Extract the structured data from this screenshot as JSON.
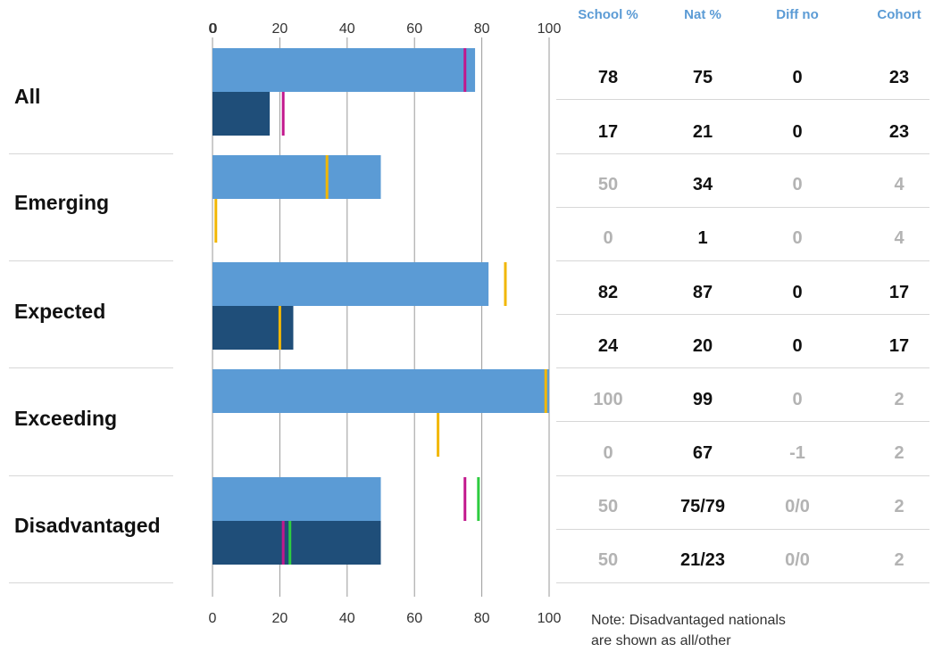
{
  "chart_data": {
    "type": "bar",
    "orientation": "horizontal",
    "xlim": [
      0,
      100
    ],
    "x_ticks": [
      "0",
      "20",
      "40",
      "60",
      "80",
      "100"
    ],
    "categories": [
      "All",
      "Emerging",
      "Expected",
      "Exceeding",
      "Disadvantaged"
    ],
    "bars": [
      {
        "category": "All",
        "shade": "light",
        "value": 78,
        "markers": [
          {
            "value": 75,
            "color": "#c2188d"
          }
        ]
      },
      {
        "category": "All",
        "shade": "dark",
        "value": 17,
        "markers": [
          {
            "value": 21,
            "color": "#c2188d"
          }
        ]
      },
      {
        "category": "Emerging",
        "shade": "light",
        "value": 50,
        "markers": [
          {
            "value": 34,
            "color": "#f2b705"
          }
        ]
      },
      {
        "category": "Emerging",
        "shade": "dark",
        "value": 0,
        "markers": [
          {
            "value": 1,
            "color": "#f2b705"
          }
        ]
      },
      {
        "category": "Expected",
        "shade": "light",
        "value": 82,
        "markers": [
          {
            "value": 87,
            "color": "#f2b705"
          }
        ]
      },
      {
        "category": "Expected",
        "shade": "dark",
        "value": 24,
        "markers": [
          {
            "value": 20,
            "color": "#f2b705"
          }
        ]
      },
      {
        "category": "Exceeding",
        "shade": "light",
        "value": 100,
        "markers": [
          {
            "value": 99,
            "color": "#f2b705"
          }
        ]
      },
      {
        "category": "Exceeding",
        "shade": "dark",
        "value": 0,
        "markers": [
          {
            "value": 67,
            "color": "#f2b705"
          }
        ]
      },
      {
        "category": "Disadvantaged",
        "shade": "light",
        "value": 50,
        "markers": [
          {
            "value": 75,
            "color": "#c2188d"
          },
          {
            "value": 79,
            "color": "#2ecc40"
          }
        ]
      },
      {
        "category": "Disadvantaged",
        "shade": "dark",
        "value": 50,
        "markers": [
          {
            "value": 21,
            "color": "#c2188d"
          },
          {
            "value": 23,
            "color": "#2ecc40"
          }
        ]
      }
    ],
    "colors": {
      "light": "#5b9bd5",
      "dark": "#1f4e79",
      "grid": "#999999"
    },
    "grid": true
  },
  "table": {
    "headers": [
      "School %",
      "Nat %",
      "Diff no",
      "Cohort"
    ],
    "rows": [
      {
        "cells": [
          "78",
          "75",
          "0",
          "23"
        ],
        "muted": [
          false,
          false,
          false,
          false
        ]
      },
      {
        "cells": [
          "17",
          "21",
          "0",
          "23"
        ],
        "muted": [
          false,
          false,
          false,
          false
        ]
      },
      {
        "cells": [
          "50",
          "34",
          "0",
          "4"
        ],
        "muted": [
          true,
          false,
          true,
          true
        ]
      },
      {
        "cells": [
          "0",
          "1",
          "0",
          "4"
        ],
        "muted": [
          true,
          false,
          true,
          true
        ]
      },
      {
        "cells": [
          "82",
          "87",
          "0",
          "17"
        ],
        "muted": [
          false,
          false,
          false,
          false
        ]
      },
      {
        "cells": [
          "24",
          "20",
          "0",
          "17"
        ],
        "muted": [
          false,
          false,
          false,
          false
        ]
      },
      {
        "cells": [
          "100",
          "99",
          "0",
          "2"
        ],
        "muted": [
          true,
          false,
          true,
          true
        ]
      },
      {
        "cells": [
          "0",
          "67",
          "-1",
          "2"
        ],
        "muted": [
          true,
          false,
          true,
          true
        ]
      },
      {
        "cells": [
          "50",
          "75/79",
          "0/0",
          "2"
        ],
        "muted": [
          true,
          false,
          true,
          true
        ]
      },
      {
        "cells": [
          "50",
          "21/23",
          "0/0",
          "2"
        ],
        "muted": [
          true,
          false,
          true,
          true
        ]
      }
    ]
  },
  "note": {
    "line1": "Note: Disadvantaged nationals",
    "line2": "are shown as all/other"
  }
}
